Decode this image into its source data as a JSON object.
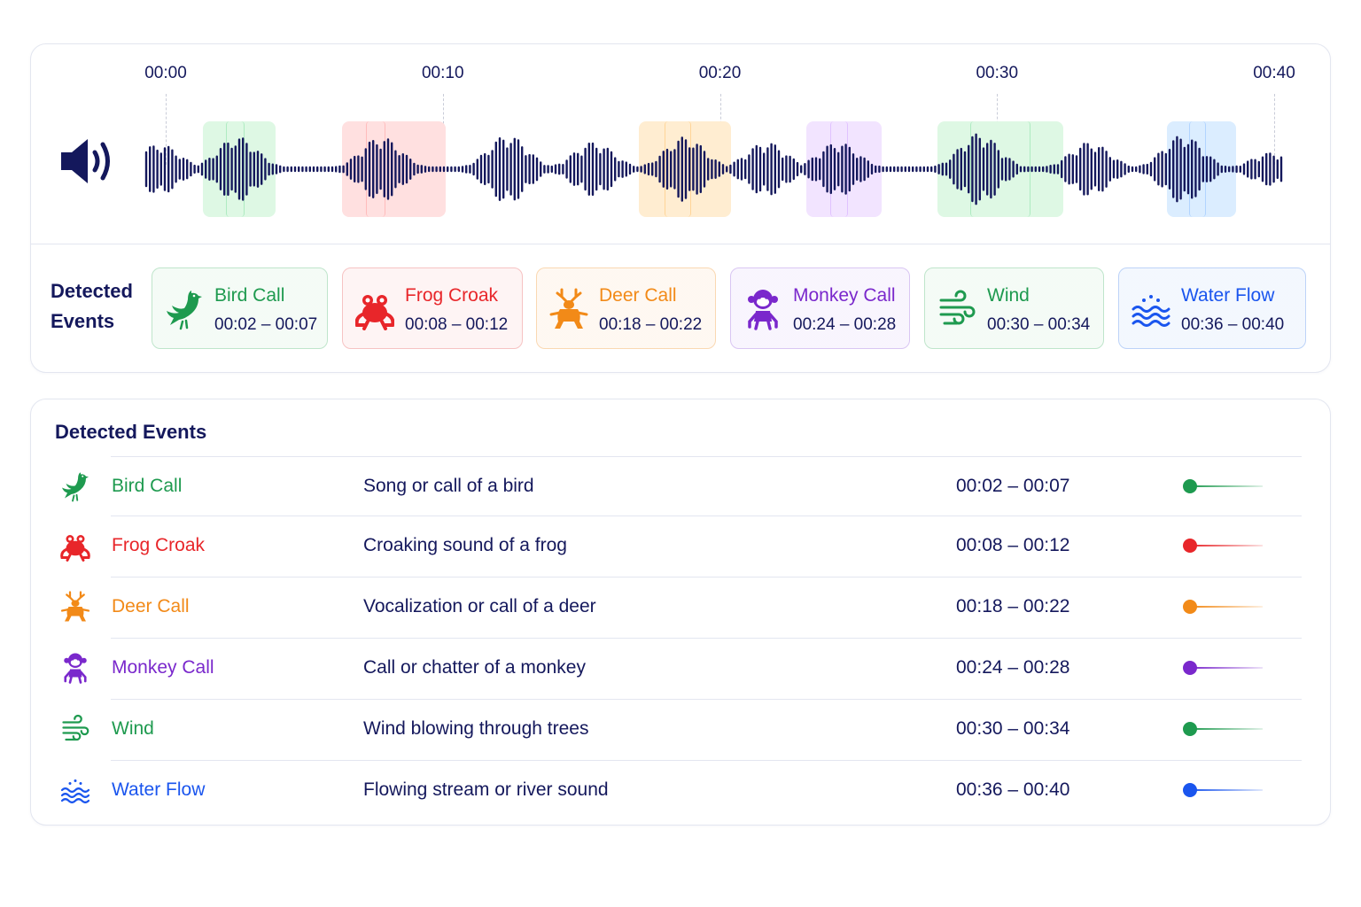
{
  "timeline": {
    "duration_seconds": 40,
    "ticks": [
      {
        "label": "00:00",
        "seconds": 0
      },
      {
        "label": "00:10",
        "seconds": 10
      },
      {
        "label": "00:20",
        "seconds": 20
      },
      {
        "label": "00:30",
        "seconds": 30
      },
      {
        "label": "00:40",
        "seconds": 40
      }
    ]
  },
  "chips_title": "Detected Events",
  "list_title": "Detected Events",
  "events": [
    {
      "name": "Bird Call",
      "icon": "bird-icon",
      "time": "00:02 – 00:07",
      "description": "Song or call of a bird",
      "color": "#1e9a4f",
      "tint": "#e5f5e9",
      "border": "#bfe5cb",
      "start": 2,
      "end": 7
    },
    {
      "name": "Frog Croak",
      "icon": "frog-icon",
      "time": "00:08 – 00:12",
      "description": "Croaking sound of a frog",
      "color": "#e8262a",
      "tint": "#fde3e3",
      "border": "#f6c3c3",
      "start": 8,
      "end": 12
    },
    {
      "name": "Deer Call",
      "icon": "deer-icon",
      "time": "00:18 – 00:22",
      "description": "Vocalization or call of a deer",
      "color": "#f28a18",
      "tint": "#feeedd",
      "border": "#fad8b2",
      "start": 18,
      "end": 22
    },
    {
      "name": "Monkey Call",
      "icon": "monkey-icon",
      "time": "00:24 – 00:28",
      "description": "Call or chatter of a monkey",
      "color": "#7a28cc",
      "tint": "#efe6fb",
      "border": "#d9c6f3",
      "start": 24,
      "end": 28
    },
    {
      "name": "Wind",
      "icon": "wind-icon",
      "time": "00:30 – 00:34",
      "description": "Wind blowing through trees",
      "color": "#1e9a4f",
      "tint": "#e5f5e9",
      "border": "#bfe5cb",
      "start": 30,
      "end": 34
    },
    {
      "name": "Water Flow",
      "icon": "water-icon",
      "time": "00:36 – 00:40",
      "description": "Flowing stream or river sound",
      "color": "#1a55ee",
      "tint": "#e1ecfd",
      "border": "#bdd3f8",
      "start": 36,
      "end": 40
    }
  ],
  "colors": {
    "waveform": "#14185c",
    "text": "#14185c",
    "divider": "#e3e6f0"
  }
}
